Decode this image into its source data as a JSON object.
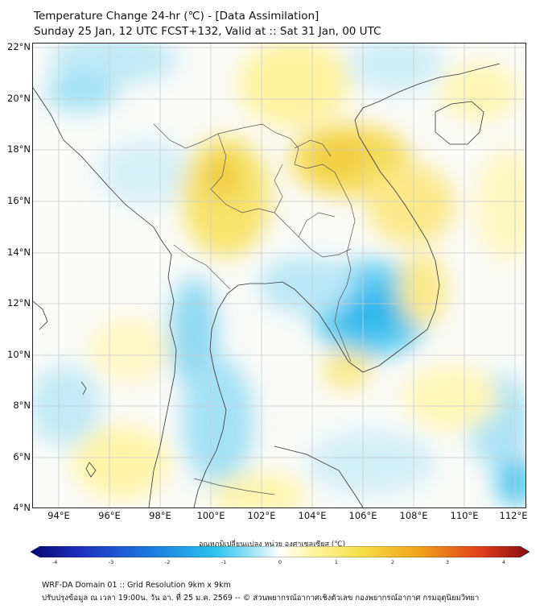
{
  "title": {
    "line1": "Temperature Change 24-hr (℃) - [Data Assimilation]",
    "line2": "Sunday 25 Jan, 12 UTC FCST+132, Valid at :: Sat 31 Jan, 00 UTC"
  },
  "map": {
    "lat_labels": [
      "22°N",
      "20°N",
      "18°N",
      "16°N",
      "14°N",
      "12°N",
      "10°N",
      "8°N",
      "6°N",
      "4°N"
    ],
    "lon_labels": [
      "94°E",
      "96°E",
      "98°E",
      "100°E",
      "102°E",
      "104°E",
      "106°E",
      "108°E",
      "110°E",
      "112°E"
    ],
    "lat_range": [
      4,
      22.2
    ],
    "lon_range": [
      93,
      112.4
    ]
  },
  "colorbar": {
    "label": "อุณหภูมิเปลี่ยนแปลง หน่วย องศาเซลเซียส (℃)",
    "ticks": [
      "-4",
      "-3",
      "-2",
      "-1",
      "0",
      "1",
      "2",
      "3",
      "4"
    ],
    "colors": [
      "#08086e",
      "#1f2fbf",
      "#1c7fe0",
      "#2cc3ee",
      "#a6e6f6",
      "#ffffff",
      "#fff6a8",
      "#f5e04a",
      "#f0a21c",
      "#e2401a",
      "#8a0a14"
    ]
  },
  "footer": {
    "line1": "WRF-DA Domain 01 :: Grid Resolution 9km x 9km",
    "line2": "ปรับปรุงข้อมูล ณ เวลา 19:00น. วัน อา. ที่ 25 ม.ค. 2569 -- © ส่วนพยากรณ์อากาศเชิงตัวเลข กองพยากรณ์อากาศ กรมอุตุนิยมวิทยา"
  }
}
